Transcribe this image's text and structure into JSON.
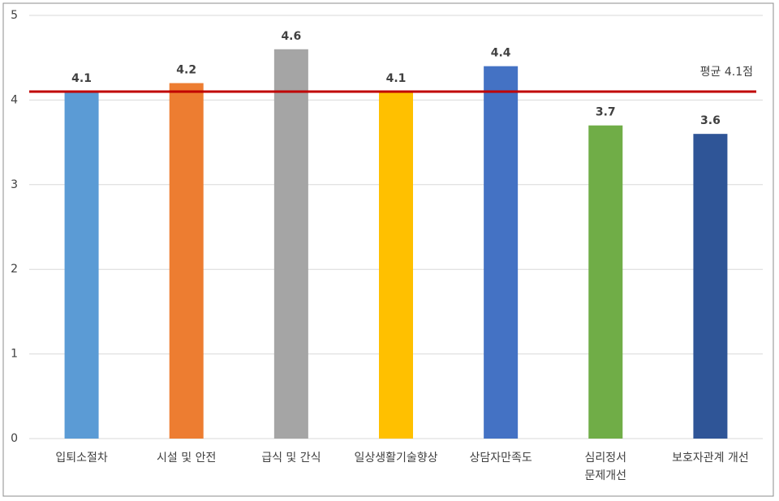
{
  "chart_data": {
    "type": "bar",
    "categories": [
      "입퇴소절차",
      "시설 및 안전",
      "급식 및 간식",
      "일상생활기술향상",
      "상담자만족도",
      "심리정서\n문제개선",
      "보호자관계 개선"
    ],
    "values": [
      4.1,
      4.2,
      4.6,
      4.1,
      4.4,
      3.7,
      3.6
    ],
    "colors": [
      "#5b9bd5",
      "#ed7d31",
      "#a5a5a5",
      "#ffc000",
      "#4472c4",
      "#70ad47",
      "#2f5597"
    ],
    "ylim": [
      0,
      5
    ],
    "yticks": [
      0,
      1,
      2,
      3,
      4,
      5
    ],
    "grid": true,
    "reference_line": {
      "value": 4.1,
      "label": "평균 4.1점",
      "color": "#c00000"
    }
  }
}
